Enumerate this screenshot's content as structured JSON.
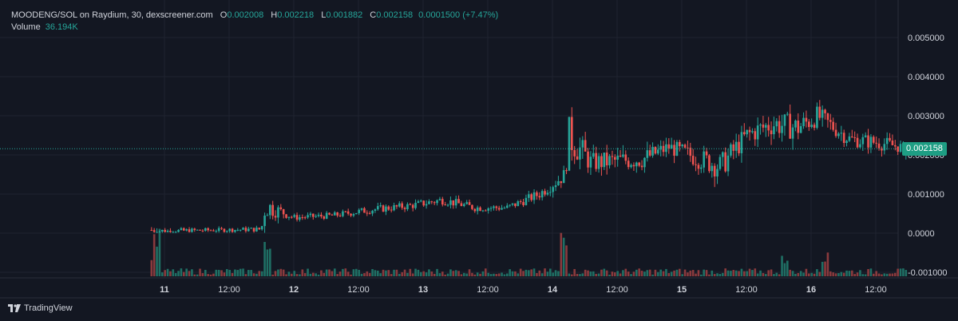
{
  "legend": {
    "symbol": "MOODENG/SOL on Raydium, 30, dexscreener.com",
    "o_label": "O",
    "o_value": "0.002008",
    "h_label": "H",
    "h_value": "0.002218",
    "l_label": "L",
    "l_value": "0.001882",
    "c_label": "C",
    "c_value": "0.002158",
    "change": "0.0001500 (+7.47%)",
    "volume_label": "Volume",
    "volume_value": "36.194K"
  },
  "last_price_badge": "0.002158",
  "brand": "TradingView",
  "colors": {
    "background": "#131722",
    "grid": "#1f2330",
    "up": "#26a69a",
    "down": "#ef5350",
    "up_volume": "#1f6f64",
    "down_volume": "#8a3a3d",
    "price_line": "#26a69a",
    "text": "#d1d4dc"
  },
  "chart_data": {
    "type": "candlestick",
    "title": "MOODENG/SOL on Raydium, 30, dexscreener.com",
    "interval": "30",
    "ylim": [
      -0.00115,
      0.0053
    ],
    "y_ticks": [
      "0.005000",
      "0.004000",
      "0.003000",
      "0.002000",
      "0.001000",
      "0.0000",
      "-0.001000"
    ],
    "y_tick_values": [
      0.005,
      0.004,
      0.003,
      0.002,
      0.001,
      0.0,
      -0.001
    ],
    "x_range_days": [
      10.55,
      16.55
    ],
    "x_ticks": [
      {
        "label": "11",
        "day": 11.0,
        "bold": true
      },
      {
        "label": "12:00",
        "day": 11.5,
        "bold": false
      },
      {
        "label": "12",
        "day": 12.0,
        "bold": true
      },
      {
        "label": "12:00",
        "day": 12.5,
        "bold": false
      },
      {
        "label": "13",
        "day": 13.0,
        "bold": true
      },
      {
        "label": "12:00",
        "day": 13.5,
        "bold": false
      },
      {
        "label": "14",
        "day": 14.0,
        "bold": true
      },
      {
        "label": "12:00",
        "day": 14.5,
        "bold": false
      },
      {
        "label": "15",
        "day": 15.0,
        "bold": true
      },
      {
        "label": "12:00",
        "day": 15.5,
        "bold": false
      },
      {
        "label": "16",
        "day": 16.0,
        "bold": true
      },
      {
        "label": "12:00",
        "day": 16.5,
        "bold": false
      }
    ],
    "last_price": 0.002158,
    "price_anchors": [
      [
        10.9,
        8e-05,
        0.00022,
        0
      ],
      [
        11.0,
        5e-05,
        0.00012,
        0
      ],
      [
        11.4,
        8e-05,
        8e-05,
        0
      ],
      [
        11.75,
        0.0001,
        0.0001,
        0
      ],
      [
        11.78,
        0.0007,
        0.0005,
        0
      ],
      [
        11.9,
        0.00055,
        0.00022,
        0
      ],
      [
        12.0,
        0.0004,
        0.00012,
        0
      ],
      [
        12.3,
        0.00045,
        0.00012,
        0
      ],
      [
        12.6,
        0.0006,
        0.00015,
        0
      ],
      [
        12.9,
        0.0007,
        0.00015,
        0
      ],
      [
        13.15,
        0.00085,
        0.00018,
        0
      ],
      [
        13.4,
        0.00065,
        0.00015,
        0
      ],
      [
        13.65,
        0.00065,
        0.00015,
        0
      ],
      [
        13.9,
        0.001,
        0.0002,
        0
      ],
      [
        14.1,
        0.0015,
        0.0003,
        0
      ],
      [
        14.12,
        0.0025,
        0.0008,
        0
      ],
      [
        14.3,
        0.0018,
        0.0004,
        0
      ],
      [
        14.7,
        0.0019,
        0.0004,
        0
      ],
      [
        14.9,
        0.0022,
        0.0003,
        0
      ],
      [
        15.3,
        0.0017,
        0.0005,
        0
      ],
      [
        15.5,
        0.0025,
        0.0004,
        0
      ],
      [
        15.7,
        0.0028,
        0.0005,
        0
      ],
      [
        15.9,
        0.0027,
        0.0005,
        0
      ],
      [
        16.05,
        0.003,
        0.0004,
        0
      ],
      [
        16.3,
        0.0024,
        0.0003,
        0
      ],
      [
        16.55,
        0.0023,
        0.0003,
        0
      ],
      [
        16.75,
        0.002158,
        0.0002,
        0
      ]
    ],
    "volume_spikes": [
      [
        10.95,
        1.0
      ],
      [
        11.8,
        0.75
      ],
      [
        14.08,
        1.0
      ],
      [
        15.8,
        0.45
      ],
      [
        16.1,
        0.5
      ]
    ]
  }
}
